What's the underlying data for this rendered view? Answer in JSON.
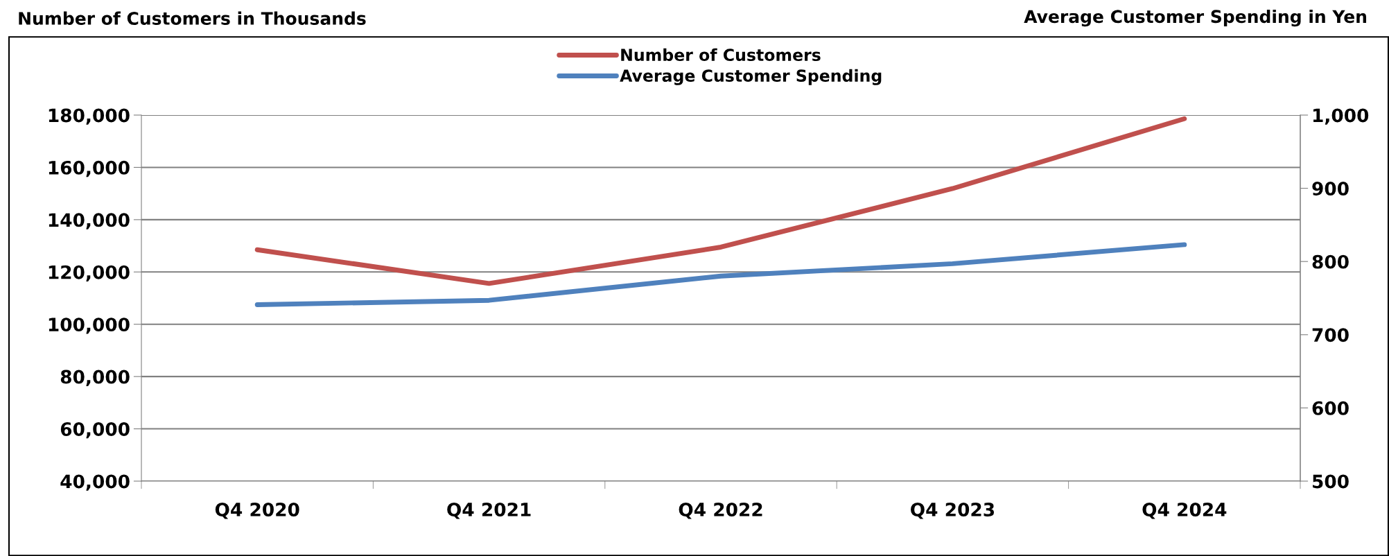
{
  "chart_data": {
    "type": "line",
    "ylabel": "Number of Customers in Thousands",
    "y2label": "Average Customer Spending in Yen",
    "categories": [
      "Q4 2020",
      "Q4 2021",
      "Q4 2022",
      "Q4 2023",
      "Q4 2024"
    ],
    "series": [
      {
        "name": "Number of Customers",
        "color": "#c0504d",
        "values": [
          128500,
          115600,
          129500,
          151900,
          178600
        ]
      },
      {
        "name": "Average Customer Spending",
        "color": "#4f81bd",
        "axis": "y2",
        "values": [
          741,
          747,
          780,
          797,
          823
        ]
      }
    ],
    "ylim": [
      40000,
      180000
    ],
    "yticks": [
      {
        "value": 40000,
        "label": "40,000"
      },
      {
        "value": 60000,
        "label": "60,000"
      },
      {
        "value": 80000,
        "label": "80,000"
      },
      {
        "value": 100000,
        "label": "100,000"
      },
      {
        "value": 120000,
        "label": "120,000"
      },
      {
        "value": 140000,
        "label": "140,000"
      },
      {
        "value": 160000,
        "label": "160,000"
      },
      {
        "value": 180000,
        "label": "180,000"
      }
    ],
    "y2lim": [
      500,
      1000
    ],
    "y2ticks": [
      500,
      600,
      700,
      800,
      900,
      {
        "value": 1000,
        "label": "1,000"
      }
    ],
    "grid": "y",
    "legend": "top",
    "marker": "none",
    "line_style": "solid"
  }
}
